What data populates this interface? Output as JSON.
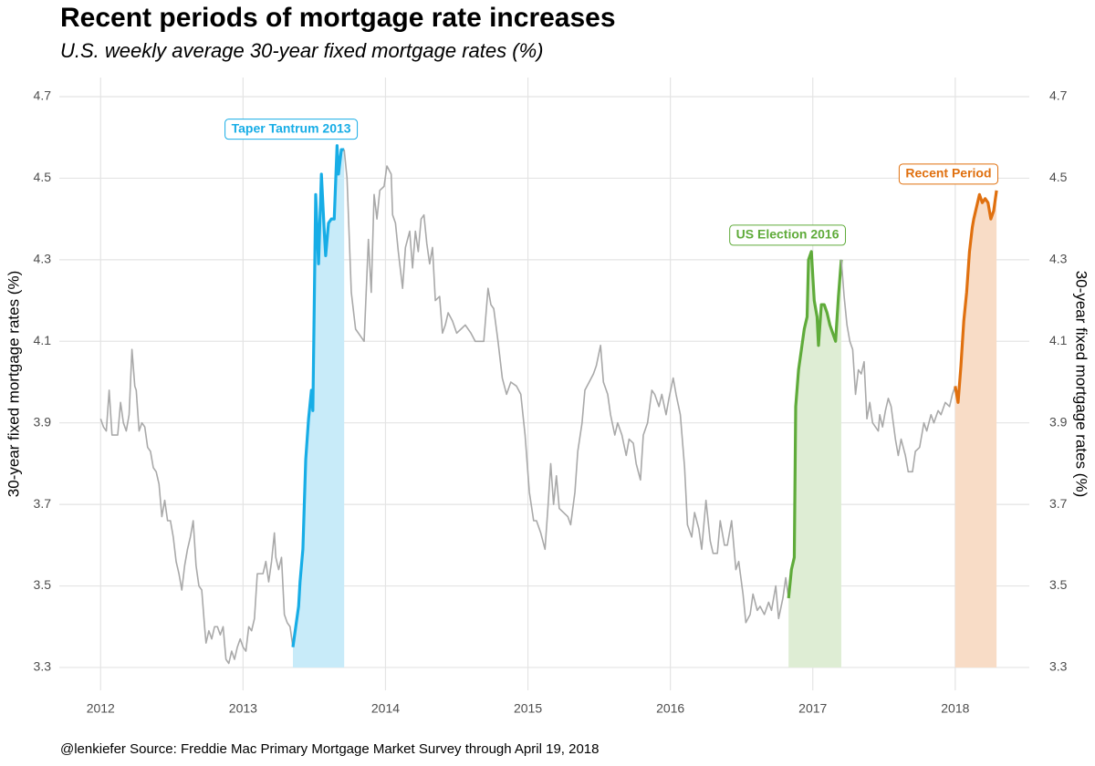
{
  "chart_data": {
    "type": "line",
    "title": "Recent periods of mortgage rate increases",
    "subtitle": "U.S. weekly average 30-year fixed mortgage rates (%)",
    "ylabel": "30-year fixed mortgage rates (%)",
    "y2label": "30-year fixed mortgage rates (%)",
    "caption": "@lenkiefer Source: Freddie Mac Primary Mortgage Market Survey through April 19, 2018",
    "xlim": [
      2011.71,
      2018.52
    ],
    "xticks": [
      2012,
      2013,
      2014,
      2015,
      2016,
      2017,
      2018
    ],
    "ylim": [
      3.244,
      4.747
    ],
    "yticks": [
      3.3,
      3.5,
      3.7,
      3.9,
      4.1,
      4.3,
      4.5,
      4.7
    ],
    "y2lim": [
      3.244,
      4.747
    ],
    "y2ticks": [
      3.3,
      3.5,
      3.7,
      3.9,
      4.1,
      4.3,
      4.5,
      4.7
    ],
    "grid": true,
    "series": [
      {
        "color": "#a9a9a9",
        "x": [
          2012.0,
          2012.02,
          2012.04,
          2012.06,
          2012.08,
          2012.1,
          2012.12,
          2012.14,
          2012.16,
          2012.18,
          2012.2,
          2012.22,
          2012.24,
          2012.25,
          2012.27,
          2012.29,
          2012.31,
          2012.33,
          2012.35,
          2012.37,
          2012.39,
          2012.41,
          2012.43,
          2012.45,
          2012.47,
          2012.49,
          2012.51,
          2012.53,
          2012.55,
          2012.57,
          2012.59,
          2012.61,
          2012.63,
          2012.65,
          2012.67,
          2012.69,
          2012.71,
          2012.73,
          2012.74,
          2012.76,
          2012.78,
          2012.8,
          2012.82,
          2012.84,
          2012.86,
          2012.88,
          2012.9,
          2012.92,
          2012.94,
          2012.96,
          2012.98,
          2013.0,
          2013.02,
          2013.04,
          2013.06,
          2013.08,
          2013.1,
          2013.12,
          2013.14,
          2013.16,
          2013.18,
          2013.2,
          2013.22,
          2013.23,
          2013.25,
          2013.27,
          2013.29,
          2013.31,
          2013.33,
          2013.35
        ],
        "values": [
          3.91,
          3.89,
          3.88,
          3.98,
          3.87,
          3.87,
          3.87,
          3.95,
          3.9,
          3.88,
          3.92,
          4.08,
          3.99,
          3.98,
          3.88,
          3.9,
          3.89,
          3.84,
          3.83,
          3.79,
          3.78,
          3.75,
          3.67,
          3.71,
          3.66,
          3.66,
          3.62,
          3.56,
          3.53,
          3.49,
          3.55,
          3.59,
          3.62,
          3.66,
          3.55,
          3.5,
          3.49,
          3.4,
          3.36,
          3.39,
          3.37,
          3.4,
          3.4,
          3.38,
          3.4,
          3.32,
          3.31,
          3.34,
          3.32,
          3.35,
          3.37,
          3.35,
          3.34,
          3.4,
          3.39,
          3.42,
          3.53,
          3.53,
          3.53,
          3.56,
          3.51,
          3.56,
          3.63,
          3.57,
          3.54,
          3.57,
          3.43,
          3.41,
          3.4,
          3.35
        ]
      },
      {
        "name": "Taper Tantrum 2013",
        "color": "#17ade6",
        "area_color": "#c8ebf9",
        "x": [
          2013.35,
          2013.37,
          2013.39,
          2013.4,
          2013.42,
          2013.44,
          2013.46,
          2013.48,
          2013.49,
          2013.51,
          2013.53,
          2013.55,
          2013.57,
          2013.58,
          2013.6,
          2013.62,
          2013.64,
          2013.66,
          2013.67,
          2013.69,
          2013.71
        ],
        "values": [
          3.35,
          3.4,
          3.45,
          3.51,
          3.59,
          3.81,
          3.91,
          3.98,
          3.93,
          4.46,
          4.29,
          4.51,
          4.37,
          4.31,
          4.39,
          4.4,
          4.4,
          4.58,
          4.51,
          4.57,
          4.57
        ]
      },
      {
        "color": "#a9a9a9",
        "x": [
          2013.71,
          2013.73,
          2013.76,
          2013.79,
          2013.85,
          2013.88,
          2013.9,
          2013.92,
          2013.94,
          2013.96,
          2013.99,
          2014.01,
          2014.04,
          2014.05,
          2014.07,
          2014.09,
          2014.12,
          2014.14,
          2014.17,
          2014.19,
          2014.21,
          2014.23,
          2014.25,
          2014.27,
          2014.29,
          2014.31,
          2014.33,
          2014.35,
          2014.38,
          2014.4,
          2014.42,
          2014.44,
          2014.47,
          2014.5,
          2014.53,
          2014.56,
          2014.6,
          2014.63,
          2014.66,
          2014.69,
          2014.72,
          2014.74,
          2014.76,
          2014.79,
          2014.82,
          2014.85,
          2014.88,
          2014.92,
          2014.95,
          2014.98,
          2015.01,
          2015.04,
          2015.06,
          2015.09,
          2015.12,
          2015.14,
          2015.16,
          2015.18,
          2015.2,
          2015.22,
          2015.25,
          2015.28,
          2015.3,
          2015.33,
          2015.35,
          2015.38,
          2015.4,
          2015.43,
          2015.46,
          2015.48,
          2015.51,
          2015.53,
          2015.56,
          2015.58,
          2015.61,
          2015.63,
          2015.66,
          2015.69,
          2015.71,
          2015.74,
          2015.76,
          2015.79,
          2015.81,
          2015.84,
          2015.87,
          2015.89,
          2015.92,
          2015.94,
          2015.97,
          2015.99,
          2016.02,
          2016.04,
          2016.07,
          2016.1,
          2016.12,
          2016.15,
          2016.17,
          2016.2,
          2016.22,
          2016.25,
          2016.28,
          2016.3,
          2016.33,
          2016.35,
          2016.38,
          2016.4,
          2016.43,
          2016.46,
          2016.48,
          2016.51,
          2016.53,
          2016.56,
          2016.58,
          2016.61,
          2016.63,
          2016.66,
          2016.69,
          2016.71,
          2016.74,
          2016.76,
          2016.79,
          2016.81,
          2016.83
        ],
        "values": [
          4.57,
          4.5,
          4.22,
          4.13,
          4.1,
          4.35,
          4.22,
          4.46,
          4.4,
          4.47,
          4.48,
          4.53,
          4.51,
          4.41,
          4.39,
          4.32,
          4.23,
          4.33,
          4.37,
          4.28,
          4.37,
          4.32,
          4.4,
          4.41,
          4.34,
          4.29,
          4.33,
          4.2,
          4.21,
          4.12,
          4.14,
          4.17,
          4.15,
          4.12,
          4.13,
          4.14,
          4.12,
          4.1,
          4.1,
          4.1,
          4.23,
          4.19,
          4.18,
          4.1,
          4.01,
          3.97,
          4.0,
          3.99,
          3.97,
          3.87,
          3.73,
          3.66,
          3.66,
          3.63,
          3.59,
          3.69,
          3.8,
          3.7,
          3.77,
          3.69,
          3.68,
          3.67,
          3.65,
          3.73,
          3.83,
          3.9,
          3.98,
          4.0,
          4.02,
          4.04,
          4.09,
          4.0,
          3.97,
          3.92,
          3.87,
          3.9,
          3.87,
          3.82,
          3.86,
          3.85,
          3.8,
          3.76,
          3.87,
          3.9,
          3.98,
          3.97,
          3.94,
          3.97,
          3.92,
          3.96,
          4.01,
          3.97,
          3.92,
          3.79,
          3.65,
          3.62,
          3.68,
          3.64,
          3.59,
          3.71,
          3.61,
          3.58,
          3.58,
          3.66,
          3.6,
          3.6,
          3.66,
          3.54,
          3.56,
          3.48,
          3.41,
          3.43,
          3.48,
          3.44,
          3.45,
          3.43,
          3.46,
          3.44,
          3.5,
          3.42,
          3.47,
          3.52,
          3.47
        ]
      },
      {
        "name": "US Election 2016",
        "color": "#5fab3a",
        "area_color": "#deedd4",
        "x": [
          2016.83,
          2016.85,
          2016.87,
          2016.88,
          2016.9,
          2016.92,
          2016.94,
          2016.96,
          2016.97,
          2016.99,
          2017.01,
          2017.03,
          2017.04,
          2017.06,
          2017.08,
          2017.1,
          2017.12,
          2017.14,
          2017.16,
          2017.18,
          2017.2
        ],
        "values": [
          3.47,
          3.54,
          3.57,
          3.94,
          4.03,
          4.08,
          4.13,
          4.16,
          4.3,
          4.32,
          4.2,
          4.16,
          4.09,
          4.19,
          4.19,
          4.17,
          4.14,
          4.12,
          4.1,
          4.21,
          4.3
        ]
      },
      {
        "color": "#a9a9a9",
        "x": [
          2017.2,
          2017.22,
          2017.24,
          2017.26,
          2017.28,
          2017.3,
          2017.32,
          2017.34,
          2017.36,
          2017.38,
          2017.4,
          2017.42,
          2017.44,
          2017.46,
          2017.47,
          2017.49,
          2017.51,
          2017.53,
          2017.55,
          2017.58,
          2017.6,
          2017.62,
          2017.65,
          2017.67,
          2017.7,
          2017.72,
          2017.75,
          2017.78,
          2017.8,
          2017.83,
          2017.85,
          2017.88,
          2017.9,
          2017.93,
          2017.96,
          2017.98,
          2018.0
        ],
        "values": [
          4.3,
          4.21,
          4.14,
          4.1,
          4.08,
          3.97,
          4.03,
          4.02,
          4.05,
          3.91,
          3.95,
          3.9,
          3.89,
          3.88,
          3.92,
          3.89,
          3.93,
          3.96,
          3.94,
          3.86,
          3.82,
          3.86,
          3.82,
          3.78,
          3.78,
          3.83,
          3.84,
          3.9,
          3.88,
          3.92,
          3.9,
          3.93,
          3.92,
          3.95,
          3.94,
          3.97,
          3.99
        ]
      },
      {
        "name": "Recent Period",
        "color": "#e0700f",
        "area_color": "#f8dcc6",
        "x": [
          2018.0,
          2018.02,
          2018.04,
          2018.06,
          2018.08,
          2018.1,
          2018.12,
          2018.13,
          2018.15,
          2018.17,
          2018.19,
          2018.21,
          2018.23,
          2018.25,
          2018.27,
          2018.29
        ],
        "values": [
          3.99,
          3.95,
          4.04,
          4.15,
          4.22,
          4.32,
          4.38,
          4.4,
          4.43,
          4.46,
          4.44,
          4.45,
          4.44,
          4.4,
          4.42,
          4.47
        ]
      }
    ]
  }
}
